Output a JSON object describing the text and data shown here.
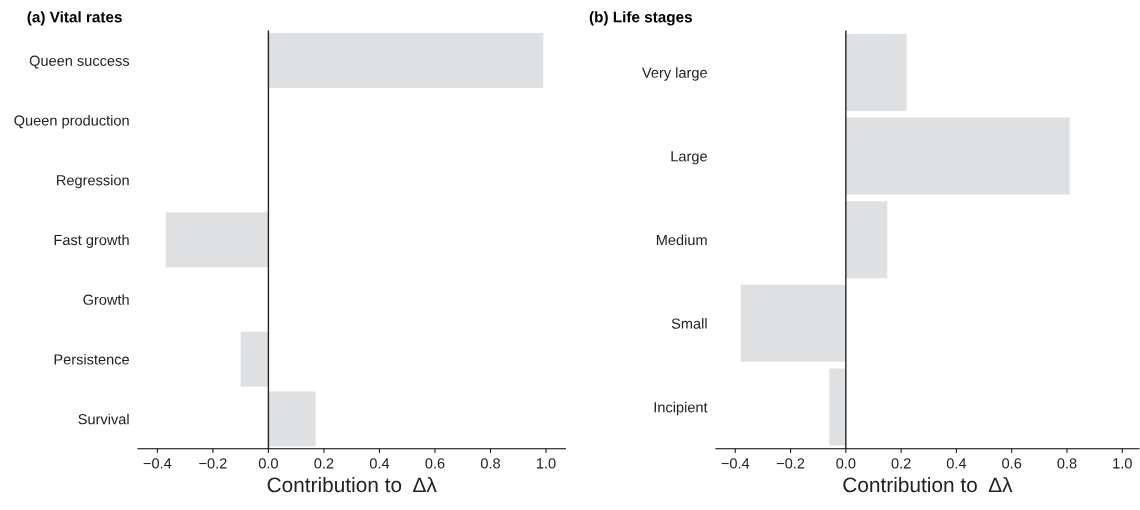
{
  "chart_data": [
    {
      "type": "bar",
      "orientation": "horizontal",
      "title": "(a) Vital rates",
      "xlabel": "Contribution to  Δλ",
      "categories": [
        "Queen success",
        "Queen production",
        "Regression",
        "Fast growth",
        "Growth",
        "Persistence",
        "Survival"
      ],
      "values": [
        0.99,
        0,
        0,
        -0.37,
        0,
        -0.1,
        0.17
      ],
      "color": "#dfe0e2",
      "xlim": [
        -0.47,
        1.07
      ],
      "xticks": [
        {
          "value": -0.4,
          "label": "−0.4"
        },
        {
          "value": -0.2,
          "label": "−0.2"
        },
        {
          "value": 0,
          "label": "0.0"
        },
        {
          "value": 0.2,
          "label": "0.2"
        },
        {
          "value": 0.4,
          "label": "0.4"
        },
        {
          "value": 0.6,
          "label": "0.6"
        },
        {
          "value": 0.8,
          "label": "0.8"
        },
        {
          "value": 1.0,
          "label": "1.0"
        }
      ],
      "ref_lines": [
        {
          "axis": "x",
          "value": 0,
          "color": "#222222"
        }
      ],
      "grid": false,
      "legend": false
    },
    {
      "type": "bar",
      "orientation": "horizontal",
      "title": "(b) Life stages",
      "xlabel": "Contribution to  Δλ",
      "categories": [
        "Very large",
        "Large",
        "Medium",
        "Small",
        "Incipient"
      ],
      "values": [
        0.22,
        0.81,
        0.15,
        -0.38,
        -0.06
      ],
      "color": "#dfe0e2",
      "xlim": [
        -0.47,
        1.06
      ],
      "xticks": [
        {
          "value": -0.4,
          "label": "−0.4"
        },
        {
          "value": -0.2,
          "label": "−0.2"
        },
        {
          "value": 0,
          "label": "0.0"
        },
        {
          "value": 0.2,
          "label": "0.2"
        },
        {
          "value": 0.4,
          "label": "0.4"
        },
        {
          "value": 0.6,
          "label": "0.6"
        },
        {
          "value": 0.8,
          "label": "0.8"
        },
        {
          "value": 1.0,
          "label": "1.0"
        }
      ],
      "ref_lines": [
        {
          "axis": "x",
          "value": 0,
          "color": "#222222"
        }
      ],
      "grid": false,
      "legend": false
    }
  ]
}
